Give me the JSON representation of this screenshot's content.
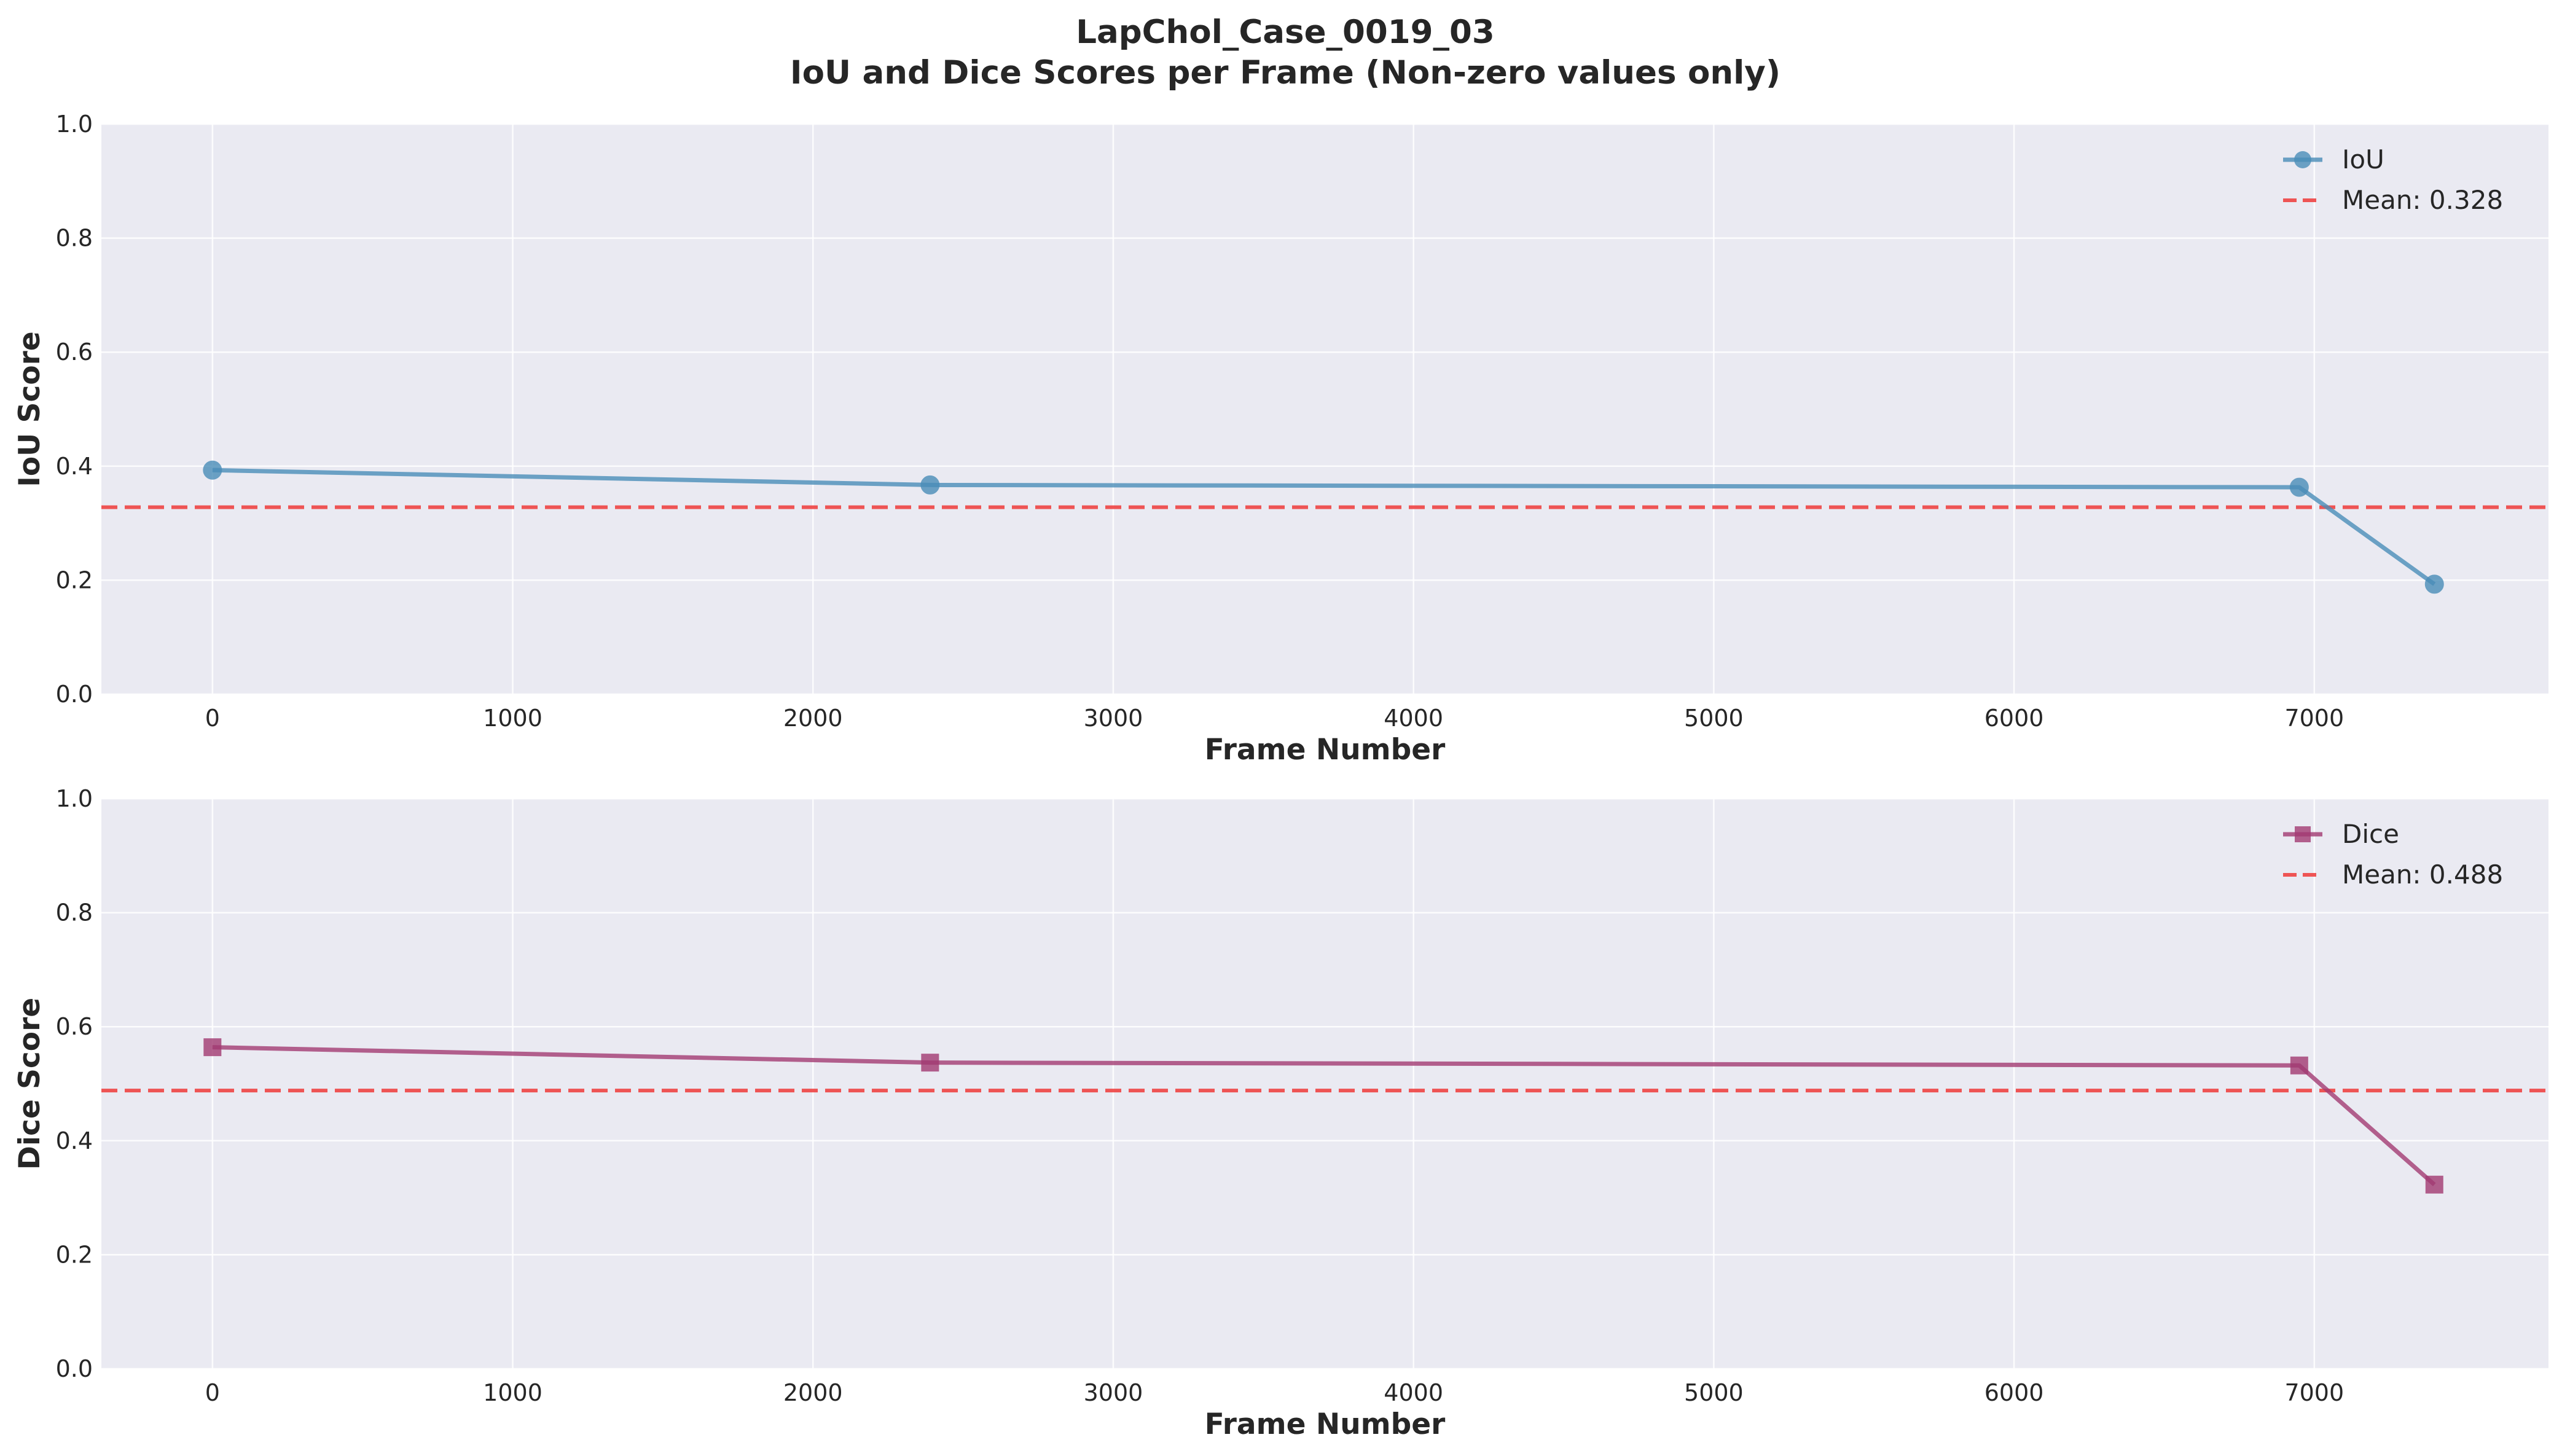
{
  "figure": {
    "title_line1": "LapChol_Case_0019_03",
    "title_line2": "IoU and Dice Scores per Frame (Non-zero values only)"
  },
  "chart_data": [
    {
      "type": "line",
      "xlabel": "Frame Number",
      "ylabel": "IoU Score",
      "xlim": [
        -370,
        7780
      ],
      "ylim": [
        0,
        1
      ],
      "xticks": [
        0,
        1000,
        2000,
        3000,
        4000,
        5000,
        6000,
        7000
      ],
      "xtick_labels": [
        "0",
        "1000",
        "2000",
        "3000",
        "4000",
        "5000",
        "6000",
        "7000"
      ],
      "yticks": [
        0,
        0.2,
        0.4,
        0.6,
        0.8,
        1.0
      ],
      "ytick_labels": [
        "0.0",
        "0.2",
        "0.4",
        "0.6",
        "0.8",
        "1.0"
      ],
      "grid": true,
      "legend_position": "top-right",
      "background": "#eaeaf2",
      "series": [
        {
          "name": "IoU",
          "marker": "circle",
          "color": "#4a8db8",
          "x": [
            0,
            2390,
            6950,
            7400
          ],
          "y": [
            0.393,
            0.367,
            0.363,
            0.193
          ]
        }
      ],
      "mean_line": {
        "label": "Mean: 0.328",
        "value": 0.328,
        "color": "#ef4444"
      }
    },
    {
      "type": "line",
      "xlabel": "Frame Number",
      "ylabel": "Dice Score",
      "xlim": [
        -370,
        7780
      ],
      "ylim": [
        0,
        1
      ],
      "xticks": [
        0,
        1000,
        2000,
        3000,
        4000,
        5000,
        6000,
        7000
      ],
      "xtick_labels": [
        "0",
        "1000",
        "2000",
        "3000",
        "4000",
        "5000",
        "6000",
        "7000"
      ],
      "yticks": [
        0,
        0.2,
        0.4,
        0.6,
        0.8,
        1.0
      ],
      "ytick_labels": [
        "0.0",
        "0.2",
        "0.4",
        "0.6",
        "0.8",
        "1.0"
      ],
      "grid": true,
      "legend_position": "top-right",
      "background": "#eaeaf2",
      "series": [
        {
          "name": "Dice",
          "marker": "square",
          "color": "#a23b72",
          "x": [
            0,
            2390,
            6950,
            7400
          ],
          "y": [
            0.564,
            0.537,
            0.532,
            0.323
          ]
        }
      ],
      "mean_line": {
        "label": "Mean: 0.488",
        "value": 0.488,
        "color": "#ef4444"
      }
    }
  ]
}
